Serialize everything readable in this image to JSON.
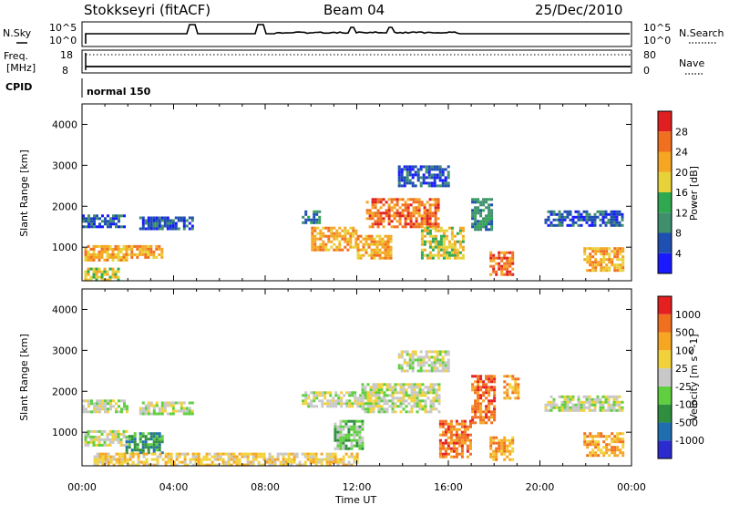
{
  "header": {
    "station": "Stokkseyri (fitACF)",
    "beam": "Beam 04",
    "date": "25/Dec/2010"
  },
  "noise_panel": {
    "left_label": "N.Sky",
    "right_label": "N.Search",
    "left_top_tick": "10^5",
    "left_bottom_tick": "10^0",
    "right_top_tick": "10^5",
    "right_bottom_tick": "10^0"
  },
  "freq_panel": {
    "left_label_line1": "Freq.",
    "left_label_line2": "[MHz]",
    "left_top_tick": "18",
    "left_bottom_tick": "8",
    "right_label": "Nave",
    "right_top_tick": "80",
    "right_bottom_tick": "0"
  },
  "cpid_panel": {
    "label": "CPID",
    "mode": "normal 150"
  },
  "colors": {
    "power_scale": [
      "#1a1aff",
      "#1f4fb0",
      "#3f8f6f",
      "#2fa84f",
      "#e8d23a",
      "#f5a623",
      "#f07020",
      "#e02020"
    ],
    "velocity_scale": [
      "#2b2bd0",
      "#1f6fb0",
      "#2f8f3f",
      "#5fcf3f",
      "#c8c8c8",
      "#f2d23a",
      "#f5a623",
      "#f07020",
      "#e52020"
    ],
    "ground_scatter": "#c0c0c0"
  },
  "chart_data": [
    {
      "type": "heatmap",
      "title": "",
      "parameter": "Power",
      "colorbar_label": "Power [dB]",
      "colorbar_ticks": [
        "4",
        "8",
        "12",
        "16",
        "20",
        "24",
        "28"
      ],
      "xlabel": "",
      "ylabel": "Slant Range [km]",
      "xlim_hours": [
        0,
        24
      ],
      "ylim_km": [
        180,
        4500
      ],
      "y_ticks": [
        "1000",
        "2000",
        "3000",
        "4000"
      ],
      "x_ticks": [
        "00:00",
        "04:00",
        "08:00",
        "12:00",
        "16:00",
        "20:00",
        "00:00"
      ],
      "regions": [
        {
          "t0": 0.0,
          "t1": 1.9,
          "r0": 1500,
          "r1": 1800,
          "level": 1
        },
        {
          "t0": 0.1,
          "t1": 1.9,
          "r0": 650,
          "r1": 1050,
          "level": 5
        },
        {
          "t0": 2.0,
          "t1": 3.5,
          "r0": 750,
          "r1": 1050,
          "level": 5
        },
        {
          "t0": 0.1,
          "t1": 1.6,
          "r0": 200,
          "r1": 500,
          "level": 4
        },
        {
          "t0": 2.5,
          "t1": 4.8,
          "r0": 1450,
          "r1": 1750,
          "level": 1
        },
        {
          "t0": 9.6,
          "t1": 10.4,
          "r0": 1600,
          "r1": 1900,
          "level": 2
        },
        {
          "t0": 10.0,
          "t1": 12.0,
          "r0": 900,
          "r1": 1500,
          "level": 5
        },
        {
          "t0": 12.4,
          "t1": 15.6,
          "r0": 1500,
          "r1": 2200,
          "level": 6
        },
        {
          "t0": 12.0,
          "t1": 13.5,
          "r0": 700,
          "r1": 1300,
          "level": 5
        },
        {
          "t0": 14.8,
          "t1": 16.6,
          "r0": 700,
          "r1": 1500,
          "level": 4
        },
        {
          "t0": 13.8,
          "t1": 16.0,
          "r0": 2500,
          "r1": 3000,
          "level": 1
        },
        {
          "t0": 17.0,
          "t1": 17.9,
          "r0": 1400,
          "r1": 2200,
          "level": 2
        },
        {
          "t0": 17.8,
          "t1": 18.8,
          "r0": 300,
          "r1": 900,
          "level": 6
        },
        {
          "t0": 20.2,
          "t1": 23.6,
          "r0": 1500,
          "r1": 1900,
          "level": 1
        },
        {
          "t0": 21.9,
          "t1": 23.6,
          "r0": 400,
          "r1": 1000,
          "level": 5
        }
      ]
    },
    {
      "type": "heatmap",
      "title": "",
      "parameter": "Velocity",
      "colorbar_label": "Velocity [m s^-1]",
      "colorbar_ticks": [
        "1000",
        "500",
        "100",
        "25",
        "-25",
        "-100",
        "-500",
        "-1000"
      ],
      "xlabel": "Time UT",
      "ylabel": "Slant Range [km]",
      "xlim_hours": [
        0,
        24
      ],
      "ylim_km": [
        180,
        4500
      ],
      "y_ticks": [
        "1000",
        "2000",
        "3000",
        "4000"
      ],
      "x_ticks": [
        "00:00",
        "04:00",
        "08:00",
        "12:00",
        "16:00",
        "20:00",
        "00:00"
      ],
      "regions": [
        {
          "t0": 0.0,
          "t1": 2.0,
          "r0": 1500,
          "r1": 1800,
          "level": 4
        },
        {
          "t0": 0.1,
          "t1": 1.9,
          "r0": 650,
          "r1": 1050,
          "level": 4
        },
        {
          "t0": 1.9,
          "t1": 3.5,
          "r0": 500,
          "r1": 1000,
          "level": 2
        },
        {
          "t0": 2.5,
          "t1": 4.8,
          "r0": 1450,
          "r1": 1750,
          "level": 4
        },
        {
          "t0": 9.6,
          "t1": 12.8,
          "r0": 1600,
          "r1": 2000,
          "level": 4
        },
        {
          "t0": 11.0,
          "t1": 12.2,
          "r0": 600,
          "r1": 1300,
          "level": 3
        },
        {
          "t0": 12.2,
          "t1": 15.6,
          "r0": 1500,
          "r1": 2200,
          "level": 4
        },
        {
          "t0": 13.8,
          "t1": 16.0,
          "r0": 2500,
          "r1": 3000,
          "level": 4
        },
        {
          "t0": 15.6,
          "t1": 17.0,
          "r0": 400,
          "r1": 1300,
          "level": 7
        },
        {
          "t0": 17.0,
          "t1": 18.0,
          "r0": 1200,
          "r1": 2400,
          "level": 7
        },
        {
          "t0": 17.8,
          "t1": 18.8,
          "r0": 300,
          "r1": 900,
          "level": 6
        },
        {
          "t0": 18.4,
          "t1": 19.0,
          "r0": 1800,
          "r1": 2400,
          "level": 6
        },
        {
          "t0": 20.2,
          "t1": 23.6,
          "r0": 1500,
          "r1": 1900,
          "level": 4
        },
        {
          "t0": 21.9,
          "t1": 23.6,
          "r0": 400,
          "r1": 1000,
          "level": 6
        },
        {
          "t0": 0.5,
          "t1": 12.0,
          "r0": 180,
          "r1": 500,
          "level": 5
        }
      ]
    }
  ]
}
